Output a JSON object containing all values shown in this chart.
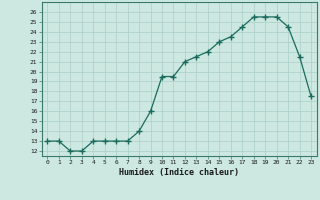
{
  "x": [
    0,
    1,
    2,
    3,
    4,
    5,
    6,
    7,
    8,
    9,
    10,
    11,
    12,
    13,
    14,
    15,
    16,
    17,
    18,
    19,
    20,
    21,
    22,
    23
  ],
  "y": [
    13,
    13,
    12,
    12,
    13,
    13,
    13,
    13,
    14,
    16,
    19.5,
    19.5,
    21,
    21.5,
    22,
    23,
    23.5,
    24.5,
    25.5,
    25.5,
    25.5,
    24.5,
    21.5,
    17.5
  ],
  "xlabel": "Humidex (Indice chaleur)",
  "ylim": [
    11.5,
    27
  ],
  "xlim": [
    -0.5,
    23.5
  ],
  "yticks": [
    12,
    13,
    14,
    15,
    16,
    17,
    18,
    19,
    20,
    21,
    22,
    23,
    24,
    25,
    26
  ],
  "xticks": [
    0,
    1,
    2,
    3,
    4,
    5,
    6,
    7,
    8,
    9,
    10,
    11,
    12,
    13,
    14,
    15,
    16,
    17,
    18,
    19,
    20,
    21,
    22,
    23
  ],
  "line_color": "#1a6b5e",
  "marker_color": "#1a6b5e",
  "bg_color": "#cce8e0",
  "grid_color": "#aacfc8"
}
